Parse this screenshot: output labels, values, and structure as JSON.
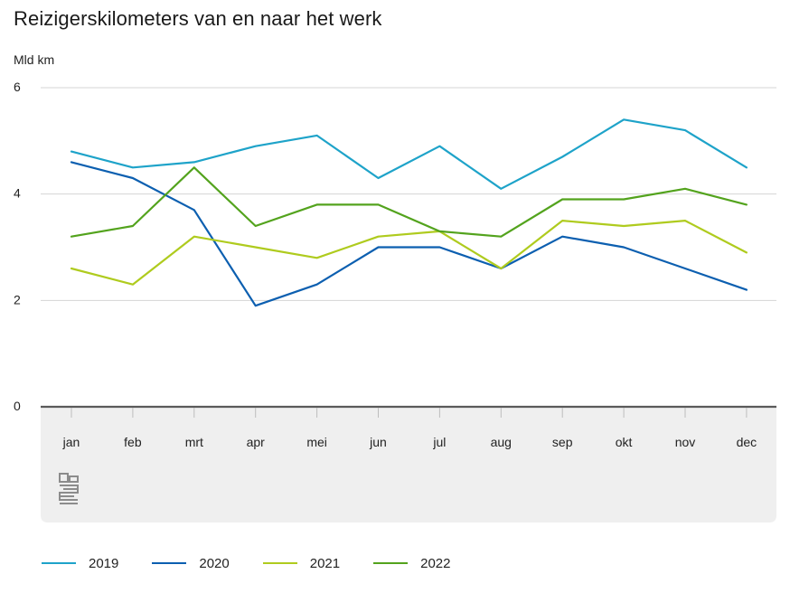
{
  "chart_data": {
    "type": "line",
    "title": "Reizigerskilometers van en naar het werk",
    "ylabel": "Mld km",
    "xlabel": "",
    "ylim": [
      0,
      6
    ],
    "yticks": [
      "0",
      "2",
      "4",
      "6"
    ],
    "categories": [
      "jan",
      "feb",
      "mrt",
      "apr",
      "mei",
      "jun",
      "jul",
      "aug",
      "sep",
      "okt",
      "nov",
      "dec"
    ],
    "series": [
      {
        "name": "2019",
        "color": "#1ea3c9",
        "values": [
          4.8,
          4.5,
          4.6,
          4.9,
          5.1,
          4.3,
          4.9,
          4.1,
          4.7,
          5.4,
          5.2,
          4.5
        ]
      },
      {
        "name": "2020",
        "color": "#0c5fb0",
        "values": [
          4.6,
          4.3,
          3.7,
          1.9,
          2.3,
          3.0,
          3.0,
          2.6,
          3.2,
          3.0,
          2.6,
          2.2
        ]
      },
      {
        "name": "2021",
        "color": "#afcb1e",
        "values": [
          2.6,
          2.3,
          3.2,
          3.0,
          2.8,
          3.2,
          3.3,
          2.6,
          3.5,
          3.4,
          3.5,
          2.9
        ]
      },
      {
        "name": "2022",
        "color": "#53a31d",
        "values": [
          3.2,
          3.4,
          4.5,
          3.4,
          3.8,
          3.8,
          3.3,
          3.2,
          3.9,
          3.9,
          4.1,
          3.8
        ]
      }
    ],
    "grid": true,
    "legend_position": "bottom-left",
    "logo": "cbs-logo"
  }
}
